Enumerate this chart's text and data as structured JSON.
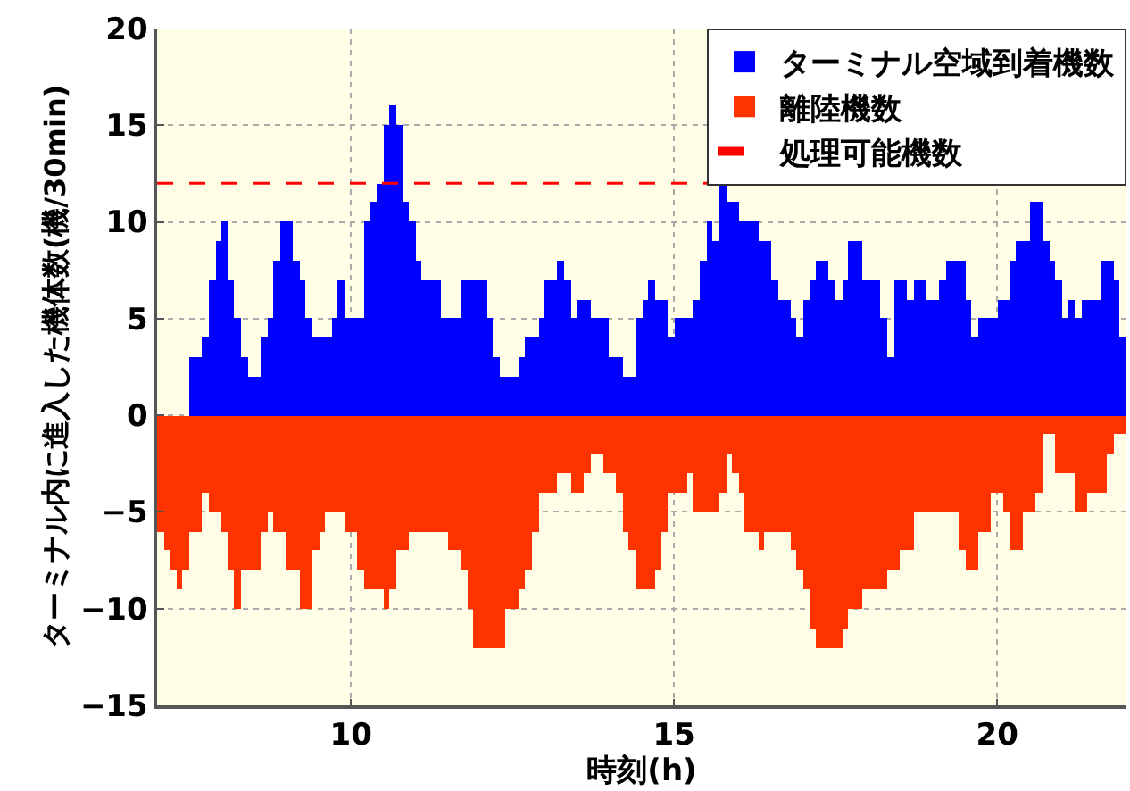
{
  "chart_data": {
    "type": "bar",
    "xlabel": "時刻(h)",
    "ylabel": "ターミナル内に進入した機体数(機/30min)",
    "x": [
      7.05,
      7.15,
      7.25,
      7.35,
      7.45,
      7.55,
      7.65,
      7.75,
      7.85,
      7.95,
      8.05,
      8.15,
      8.25,
      8.35,
      8.45,
      8.55,
      8.65,
      8.75,
      8.85,
      8.95,
      9.05,
      9.15,
      9.25,
      9.35,
      9.45,
      9.55,
      9.65,
      9.75,
      9.85,
      9.95,
      10.05,
      10.15,
      10.25,
      10.35,
      10.45,
      10.55,
      10.65,
      10.75,
      10.85,
      10.95,
      11.05,
      11.15,
      11.25,
      11.35,
      11.45,
      11.55,
      11.65,
      11.75,
      11.85,
      11.95,
      12.05,
      12.15,
      12.25,
      12.35,
      12.45,
      12.55,
      12.65,
      12.75,
      12.85,
      12.95,
      13.05,
      13.15,
      13.25,
      13.35,
      13.45,
      13.55,
      13.65,
      13.75,
      13.85,
      13.95,
      14.05,
      14.15,
      14.25,
      14.35,
      14.45,
      14.55,
      14.65,
      14.75,
      14.85,
      14.95,
      15.05,
      15.15,
      15.25,
      15.35,
      15.45,
      15.55,
      15.65,
      15.75,
      15.85,
      15.95,
      16.05,
      16.15,
      16.25,
      16.35,
      16.45,
      16.55,
      16.65,
      16.75,
      16.85,
      16.95,
      17.05,
      17.15,
      17.25,
      17.35,
      17.45,
      17.55,
      17.65,
      17.75,
      17.85,
      17.95,
      18.05,
      18.15,
      18.25,
      18.35,
      18.45,
      18.55,
      18.65,
      18.75,
      18.85,
      18.95,
      19.05,
      19.15,
      19.25,
      19.35,
      19.45,
      19.55,
      19.65,
      19.75,
      19.85,
      19.95,
      20.05,
      20.15,
      20.25,
      20.35,
      20.45,
      20.55,
      20.65,
      20.75,
      20.85,
      20.95,
      21.05,
      21.15,
      21.25,
      21.35,
      21.45,
      21.55,
      21.65,
      21.75,
      21.85,
      21.95
    ],
    "series": [
      {
        "name": "ターミナル空域到着機数",
        "color": "#0000ff",
        "values": [
          0,
          0,
          0,
          0,
          0,
          3,
          3,
          4,
          7,
          9,
          10,
          7,
          5,
          3,
          2,
          2,
          4,
          5,
          8,
          10,
          10,
          8,
          7,
          5,
          4,
          4,
          4,
          5,
          7,
          5,
          5,
          5,
          10,
          11,
          12,
          15,
          16,
          15,
          11,
          10,
          8,
          7,
          7,
          7,
          5,
          5,
          5,
          7,
          7,
          7,
          7,
          5,
          3,
          2,
          2,
          2,
          3,
          4,
          4,
          5,
          7,
          7,
          8,
          7,
          5,
          6,
          6,
          5,
          5,
          5,
          3,
          3,
          2,
          2,
          5,
          6,
          7,
          6,
          6,
          4,
          5,
          5,
          5,
          6,
          8,
          10,
          9,
          12,
          11,
          11,
          10,
          10,
          10,
          9,
          9,
          7,
          6,
          6,
          5,
          4,
          6,
          7,
          8,
          8,
          7,
          6,
          7,
          9,
          9,
          7,
          7,
          7,
          5,
          3,
          7,
          7,
          6,
          7,
          7,
          6,
          6,
          7,
          8,
          8,
          8,
          6,
          4,
          5,
          5,
          5,
          6,
          6,
          8,
          9,
          9,
          11,
          11,
          9,
          8,
          7,
          5,
          6,
          5,
          6,
          6,
          6,
          8,
          8,
          7,
          4
        ]
      },
      {
        "name": "離陸機数",
        "color": "#ff3300",
        "values": [
          -6,
          -7,
          -8,
          -9,
          -8,
          -6,
          -6,
          -4,
          -5,
          -5,
          -6,
          -8,
          -10,
          -8,
          -8,
          -8,
          -6,
          -5,
          -6,
          -6,
          -8,
          -8,
          -10,
          -10,
          -7,
          -6,
          -5,
          -5,
          -5,
          -6,
          -6,
          -8,
          -9,
          -9,
          -9,
          -10,
          -9,
          -7,
          -7,
          -6,
          -6,
          -6,
          -6,
          -6,
          -6,
          -7,
          -7,
          -8,
          -10,
          -12,
          -12,
          -12,
          -12,
          -12,
          -10,
          -10,
          -9,
          -8,
          -6,
          -4,
          -4,
          -4,
          -3,
          -3,
          -4,
          -4,
          -3,
          -2,
          -2,
          -3,
          -3,
          -4,
          -6,
          -7,
          -9,
          -9,
          -9,
          -8,
          -6,
          -4,
          -4,
          -4,
          -3,
          -5,
          -5,
          -5,
          -5,
          -4,
          -2,
          -3,
          -4,
          -6,
          -6,
          -7,
          -6,
          -6,
          -6,
          -6,
          -7,
          -8,
          -9,
          -11,
          -12,
          -12,
          -12,
          -12,
          -11,
          -10,
          -10,
          -9,
          -9,
          -9,
          -9,
          -8,
          -8,
          -7,
          -7,
          -5,
          -5,
          -5,
          -5,
          -5,
          -5,
          -5,
          -7,
          -8,
          -8,
          -6,
          -6,
          -4,
          -4,
          -5,
          -7,
          -7,
          -5,
          -5,
          -4,
          -1,
          -1,
          -3,
          -3,
          -3,
          -5,
          -5,
          -4,
          -4,
          -4,
          -2,
          -1,
          -1
        ]
      }
    ],
    "ref_lines": [
      {
        "axis": "y",
        "value": 12,
        "label": "処理可能機数",
        "color": "#ff0000",
        "line_style": "dashed"
      }
    ],
    "xlim": [
      7,
      22
    ],
    "xticks": [
      10,
      15,
      20
    ],
    "ylim": [
      -15,
      20
    ],
    "yticks": [
      -15,
      -10,
      -5,
      0,
      5,
      10,
      15,
      20
    ],
    "stacked": true,
    "grid": true,
    "legend": "top right"
  }
}
